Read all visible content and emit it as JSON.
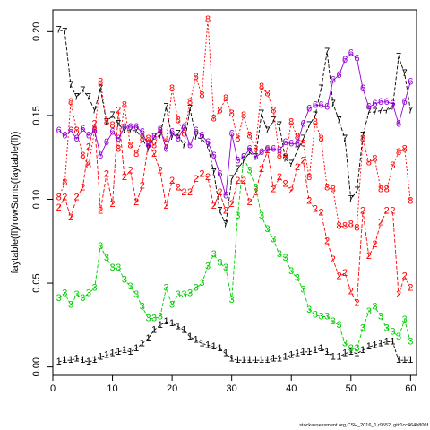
{
  "chart_data": {
    "type": "line",
    "title": "",
    "xlabel": "",
    "ylabel": "faytable(fl)/rowSums(faytable(fl))",
    "xlim": [
      0,
      61
    ],
    "ylim": [
      -0.005,
      0.213
    ],
    "x_ticks": [
      0,
      10,
      20,
      30,
      40,
      50,
      60
    ],
    "y_ticks": [
      0.0,
      0.05,
      0.1,
      0.15,
      0.2
    ],
    "y_tick_labels": [
      "0.00",
      "0.05",
      "0.10",
      "0.15",
      "0.20"
    ],
    "grid": false,
    "legend": "none",
    "footer": "stockassessment.org,CSH_2016_1,r9552, git:1cc464b806f",
    "x": [
      1,
      2,
      3,
      4,
      5,
      6,
      7,
      8,
      9,
      10,
      11,
      12,
      13,
      14,
      15,
      16,
      17,
      18,
      19,
      20,
      21,
      22,
      23,
      24,
      25,
      26,
      27,
      28,
      29,
      30,
      31,
      32,
      33,
      34,
      35,
      36,
      37,
      38,
      39,
      40,
      41,
      42,
      43,
      44,
      45,
      46,
      47,
      48,
      49,
      50,
      51,
      52,
      53,
      54,
      55,
      56,
      57,
      58,
      59,
      60
    ],
    "series": [
      {
        "label": "1",
        "color": "#000000",
        "dash": "3,2",
        "values": [
          0.003,
          0.004,
          0.004,
          0.005,
          0.004,
          0.003,
          0.004,
          0.006,
          0.007,
          0.008,
          0.009,
          0.01,
          0.009,
          0.011,
          0.014,
          0.017,
          0.022,
          0.025,
          0.027,
          0.026,
          0.024,
          0.022,
          0.018,
          0.016,
          0.014,
          0.013,
          0.012,
          0.011,
          0.008,
          0.005,
          0.004,
          0.004,
          0.004,
          0.004,
          0.004,
          0.004,
          0.005,
          0.005,
          0.006,
          0.007,
          0.008,
          0.009,
          0.009,
          0.01,
          0.011,
          0.009,
          0.006,
          0.006,
          0.008,
          0.009,
          0.008,
          0.01,
          0.012,
          0.013,
          0.014,
          0.015,
          0.015,
          0.004,
          0.004,
          0.004
        ]
      },
      {
        "label": "2",
        "color": "#ff0000",
        "dash": "4,2",
        "values": [
          0.095,
          0.101,
          0.089,
          0.101,
          0.107,
          0.131,
          0.145,
          0.093,
          0.115,
          0.097,
          0.153,
          0.113,
          0.117,
          0.098,
          0.108,
          0.133,
          0.127,
          0.117,
          0.096,
          0.111,
          0.107,
          0.104,
          0.104,
          0.112,
          0.115,
          0.113,
          0.096,
          0.104,
          0.093,
          0.097,
          0.111,
          0.111,
          0.098,
          0.104,
          0.118,
          0.129,
          0.106,
          0.113,
          0.109,
          0.105,
          0.119,
          0.123,
          0.099,
          0.094,
          0.092,
          0.075,
          0.064,
          0.054,
          0.056,
          0.045,
          0.038,
          0.093,
          0.066,
          0.073,
          0.086,
          0.093,
          0.093,
          0.043,
          0.054,
          0.047
        ]
      },
      {
        "label": "3",
        "color": "#00cd00",
        "dash": "4,2",
        "values": [
          0.041,
          0.044,
          0.037,
          0.043,
          0.041,
          0.044,
          0.047,
          0.072,
          0.065,
          0.059,
          0.059,
          0.052,
          0.048,
          0.043,
          0.036,
          0.029,
          0.029,
          0.03,
          0.047,
          0.037,
          0.043,
          0.043,
          0.044,
          0.047,
          0.05,
          0.06,
          0.067,
          0.062,
          0.059,
          0.04,
          0.09,
          0.125,
          0.117,
          0.107,
          0.09,
          0.082,
          0.076,
          0.067,
          0.065,
          0.057,
          0.053,
          0.046,
          0.034,
          0.031,
          0.03,
          0.03,
          0.027,
          0.025,
          0.014,
          0.011,
          0.011,
          0.023,
          0.033,
          0.036,
          0.03,
          0.023,
          0.021,
          0.018,
          0.028,
          0.015
        ]
      },
      {
        "label": "7",
        "color": "#000000",
        "dash": "4,2",
        "values": [
          0.201,
          0.2,
          0.168,
          0.161,
          0.165,
          0.161,
          0.153,
          0.166,
          0.146,
          0.15,
          0.145,
          0.141,
          0.141,
          0.141,
          0.136,
          0.13,
          0.137,
          0.138,
          0.155,
          0.137,
          0.139,
          0.132,
          0.154,
          0.137,
          0.136,
          0.132,
          0.116,
          0.093,
          0.085,
          0.112,
          0.118,
          0.123,
          0.128,
          0.125,
          0.151,
          0.141,
          0.147,
          0.144,
          0.124,
          0.121,
          0.129,
          0.136,
          0.144,
          0.15,
          0.166,
          0.188,
          0.157,
          0.147,
          0.136,
          0.1,
          0.105,
          0.138,
          0.152,
          0.152,
          0.153,
          0.153,
          0.155,
          0.185,
          0.175,
          0.153
        ]
      },
      {
        "label": "8",
        "color": "#ff0000",
        "dash": "2,2",
        "values": [
          0.101,
          0.11,
          0.158,
          0.141,
          0.126,
          0.12,
          0.141,
          0.17,
          0.146,
          0.144,
          0.13,
          0.156,
          0.132,
          0.127,
          0.136,
          0.136,
          0.132,
          0.141,
          0.134,
          0.166,
          0.147,
          0.139,
          0.158,
          0.173,
          0.162,
          0.207,
          0.148,
          0.153,
          0.16,
          0.151,
          0.136,
          0.15,
          0.138,
          0.13,
          0.167,
          0.163,
          0.153,
          0.126,
          0.125,
          0.146,
          0.137,
          0.133,
          0.113,
          0.146,
          0.136,
          0.107,
          0.106,
          0.084,
          0.084,
          0.085,
          0.083,
          0.136,
          0.122,
          0.124,
          0.106,
          0.106,
          0.12,
          0.128,
          0.13,
          0.099
        ]
      },
      {
        "label": "6",
        "color": "#9400d3",
        "dash": "",
        "values": [
          0.141,
          0.138,
          0.141,
          0.136,
          0.142,
          0.138,
          0.141,
          0.126,
          0.134,
          0.14,
          0.136,
          0.143,
          0.143,
          0.143,
          0.14,
          0.132,
          0.137,
          0.142,
          0.13,
          0.14,
          0.136,
          0.143,
          0.132,
          0.141,
          0.138,
          0.134,
          0.126,
          0.115,
          0.102,
          0.139,
          0.123,
          0.125,
          0.13,
          0.125,
          0.128,
          0.13,
          0.13,
          0.129,
          0.134,
          0.133,
          0.133,
          0.145,
          0.154,
          0.156,
          0.156,
          0.155,
          0.171,
          0.174,
          0.183,
          0.187,
          0.184,
          0.166,
          0.155,
          0.157,
          0.158,
          0.158,
          0.157,
          0.145,
          0.158,
          0.17
        ]
      }
    ]
  }
}
